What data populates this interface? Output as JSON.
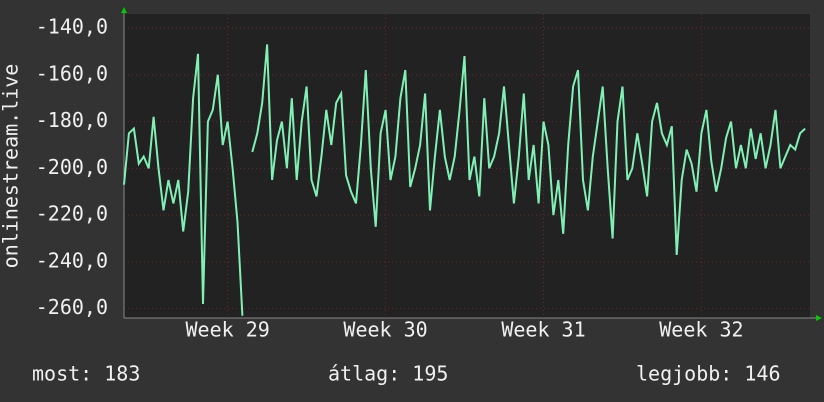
{
  "chart_data": {
    "type": "line",
    "ylabel": "onlinestream.live",
    "series": [
      {
        "name": "onlinestream.live",
        "color": "#80f0b4",
        "values": [
          -207,
          -185,
          -183,
          -198,
          -195,
          -200,
          -178,
          -200,
          -218,
          -205,
          -215,
          -205,
          -227,
          -210,
          -170,
          -151,
          -258,
          -180,
          -175,
          -160,
          -190,
          -180,
          -200,
          -223,
          -263,
          null,
          -193,
          -185,
          -172,
          -147,
          -205,
          -188,
          -180,
          -200,
          -170,
          -205,
          -180,
          -165,
          -205,
          -212,
          -195,
          -175,
          -190,
          -172,
          -168,
          -203,
          -210,
          -215,
          -190,
          -158,
          -200,
          -225,
          -185,
          -175,
          -205,
          -195,
          -170,
          -158,
          -208,
          -200,
          -190,
          -168,
          -218,
          -195,
          -175,
          -195,
          -205,
          -195,
          -175,
          -152,
          -205,
          -195,
          -212,
          -170,
          -200,
          -195,
          -185,
          -165,
          -190,
          -215,
          -195,
          -168,
          -205,
          -190,
          -215,
          -180,
          -190,
          -220,
          -205,
          -228,
          -190,
          -165,
          -158,
          -205,
          -218,
          -195,
          -180,
          -165,
          -200,
          -230,
          -180,
          -165,
          -205,
          -200,
          -185,
          -198,
          -212,
          -180,
          -172,
          -185,
          -190,
          -182,
          -237,
          -205,
          -192,
          -198,
          -210,
          -185,
          -175,
          -197,
          -210,
          -200,
          -187,
          -180,
          -200,
          -190,
          -200,
          -183,
          -196,
          -185,
          -200,
          -190,
          -175,
          -200,
          -195,
          -190,
          -192,
          -185,
          -183
        ]
      }
    ],
    "xlim": [
      0,
      139
    ],
    "xticks": [
      {
        "value": 21,
        "label": "Week 29"
      },
      {
        "value": 53,
        "label": "Week 30"
      },
      {
        "value": 85,
        "label": "Week 31"
      },
      {
        "value": 117,
        "label": "Week 32"
      }
    ],
    "ylim": [
      -264,
      -134
    ],
    "yticks": [
      {
        "value": -140,
        "label": "-140,0"
      },
      {
        "value": -160,
        "label": "-160,0"
      },
      {
        "value": -180,
        "label": "-180,0"
      },
      {
        "value": -200,
        "label": "-200,0"
      },
      {
        "value": -220,
        "label": "-220,0"
      },
      {
        "value": -240,
        "label": "-240,0"
      },
      {
        "value": -260,
        "label": "-260,0"
      }
    ],
    "grid": true,
    "stats": [
      "most: 183",
      "átlag: 195",
      "legjobb: 146"
    ]
  }
}
